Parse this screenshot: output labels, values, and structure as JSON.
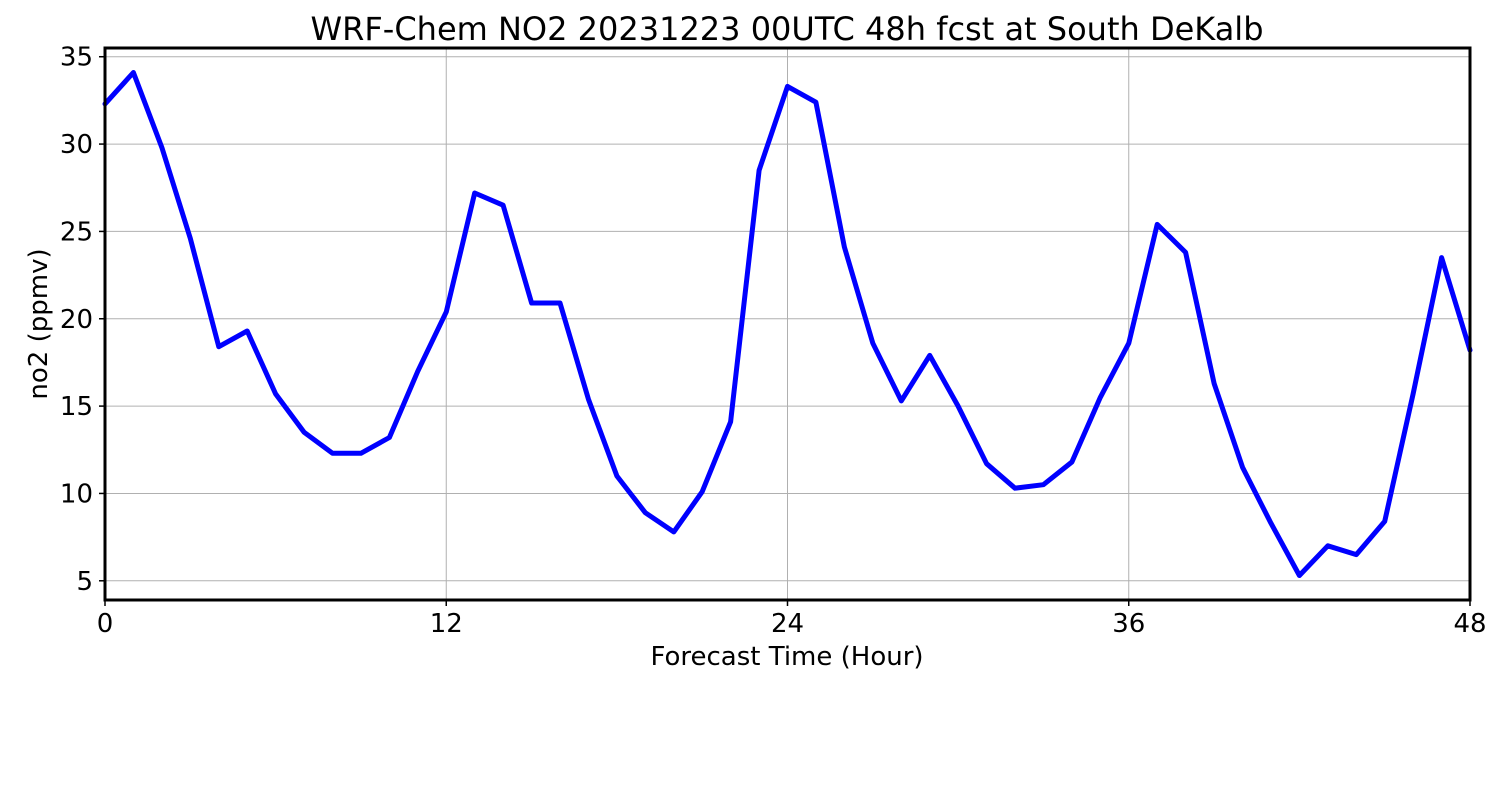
{
  "chart_data": {
    "type": "line",
    "title": "WRF-Chem NO2  20231223 00UTC 48h fcst at South DeKalb",
    "xlabel": "Forecast Time (Hour)",
    "ylabel": "no2  (ppmv)",
    "xlim": [
      0,
      48
    ],
    "ylim": [
      3.9,
      35.5
    ],
    "xticks": [
      0,
      12,
      24,
      36,
      48
    ],
    "yticks": [
      5,
      10,
      15,
      20,
      25,
      30,
      35
    ],
    "grid": true,
    "series": [
      {
        "color": "#0000ff",
        "x": [
          0,
          1,
          2,
          3,
          4,
          5,
          6,
          7,
          8,
          9,
          10,
          11,
          12,
          13,
          14,
          15,
          16,
          17,
          18,
          19,
          20,
          21,
          22,
          23,
          24,
          25,
          26,
          27,
          28,
          29,
          30,
          31,
          32,
          33,
          34,
          35,
          36,
          37,
          38,
          39,
          40,
          41,
          42,
          43,
          44,
          45,
          46,
          47,
          48
        ],
        "values": [
          32.3,
          34.1,
          29.8,
          24.6,
          18.4,
          19.3,
          15.7,
          13.5,
          12.3,
          12.3,
          13.2,
          17.0,
          20.4,
          27.2,
          26.5,
          20.9,
          20.9,
          15.4,
          11.0,
          8.9,
          7.8,
          10.1,
          14.1,
          28.5,
          33.3,
          32.4,
          24.1,
          18.6,
          15.3,
          17.9,
          15.0,
          11.7,
          10.3,
          10.5,
          11.8,
          15.5,
          18.6,
          25.4,
          23.8,
          16.3,
          11.5,
          8.3,
          5.3,
          7.0,
          6.5,
          8.4,
          15.7,
          23.5,
          18.2
        ]
      }
    ]
  }
}
